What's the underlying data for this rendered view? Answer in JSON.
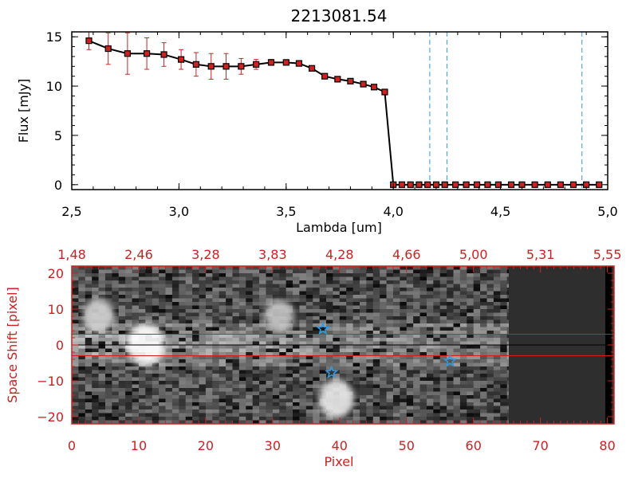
{
  "chart_data": [
    {
      "type": "line",
      "title": "2213081.54",
      "xlabel": "Lambda [um]",
      "ylabel": "Flux [mJy]",
      "xlim": [
        2.5,
        5.0
      ],
      "ylim": [
        -0.5,
        15.5
      ],
      "x_ticks": [
        "2.5",
        "3.0",
        "3.5",
        "4.0",
        "4.5",
        "5.0"
      ],
      "y_ticks": [
        "0",
        "5",
        "10",
        "15"
      ],
      "colors": {
        "line": "#000000",
        "marker": "#cc2222",
        "error_bar": "#cc2222",
        "reference_line": "#3399dd"
      },
      "reference_lines_x": [
        4.17,
        4.25,
        4.88
      ],
      "series": [
        {
          "x": [
            2.58,
            2.67,
            2.76,
            2.85,
            2.93,
            3.01,
            3.08,
            3.15,
            3.22,
            3.29,
            3.36,
            3.43,
            3.5,
            3.56,
            3.62,
            3.68,
            3.74,
            3.8,
            3.86,
            3.91,
            3.96,
            4.0,
            4.04,
            4.08,
            4.12,
            4.16,
            4.2,
            4.24,
            4.29,
            4.34,
            4.39,
            4.44,
            4.49,
            4.55,
            4.6,
            4.66,
            4.72,
            4.78,
            4.84,
            4.9,
            4.96
          ],
          "y": [
            14.6,
            13.8,
            13.3,
            13.3,
            13.2,
            12.7,
            12.2,
            12.0,
            12.0,
            12.0,
            12.2,
            12.4,
            12.4,
            12.3,
            11.8,
            11.0,
            10.7,
            10.5,
            10.2,
            9.9,
            9.4,
            0,
            0,
            0,
            0,
            0,
            0,
            0,
            0,
            0,
            0,
            0,
            0,
            0,
            0,
            0,
            0,
            0,
            0,
            0,
            0
          ],
          "yerr": [
            0.9,
            1.6,
            2.1,
            1.6,
            1.2,
            1.0,
            1.2,
            1.3,
            1.3,
            0.8,
            0.5,
            0.3,
            0.2,
            0.2,
            0.2,
            0.1,
            0.1,
            0.1,
            0.1,
            0.1,
            0.1,
            0,
            0,
            0,
            0,
            0,
            0,
            0,
            0,
            0,
            0,
            0,
            0,
            0,
            0,
            0,
            0,
            0,
            0,
            0,
            0
          ]
        }
      ]
    },
    {
      "type": "heatmap",
      "xlabel": "Pixel",
      "ylabel": "Space Shift [pixel]",
      "xlim": [
        0,
        81
      ],
      "ylim": [
        -22,
        22
      ],
      "x_ticks": [
        "0",
        "10",
        "20",
        "30",
        "40",
        "50",
        "60",
        "70",
        "80"
      ],
      "y_ticks": [
        "-20",
        "-10",
        "0",
        "10",
        "20"
      ],
      "top_axis_ticks": [
        "1.48",
        "2.46",
        "3.28",
        "3.83",
        "4.28",
        "4.66",
        "5.00",
        "5.31",
        "5.55"
      ],
      "colors": {
        "frame": "#cc2222",
        "slit_lines": "#cc2222",
        "markers": "#3399dd"
      },
      "slit_lines_y": [
        3,
        -3
      ],
      "center_line_y": 0,
      "star_markers": [
        {
          "x": 37.5,
          "y": 4.5
        },
        {
          "x": 38.8,
          "y": -7.7
        },
        {
          "x": 56.5,
          "y": -4.5
        }
      ],
      "bright_spots": [
        {
          "x": 11,
          "y": 0,
          "intensity": 1.0
        },
        {
          "x": 39.5,
          "y": -15,
          "intensity": 0.8
        },
        {
          "x": 4,
          "y": 8,
          "intensity": 0.55
        },
        {
          "x": 31,
          "y": 8,
          "intensity": 0.45
        }
      ]
    }
  ]
}
